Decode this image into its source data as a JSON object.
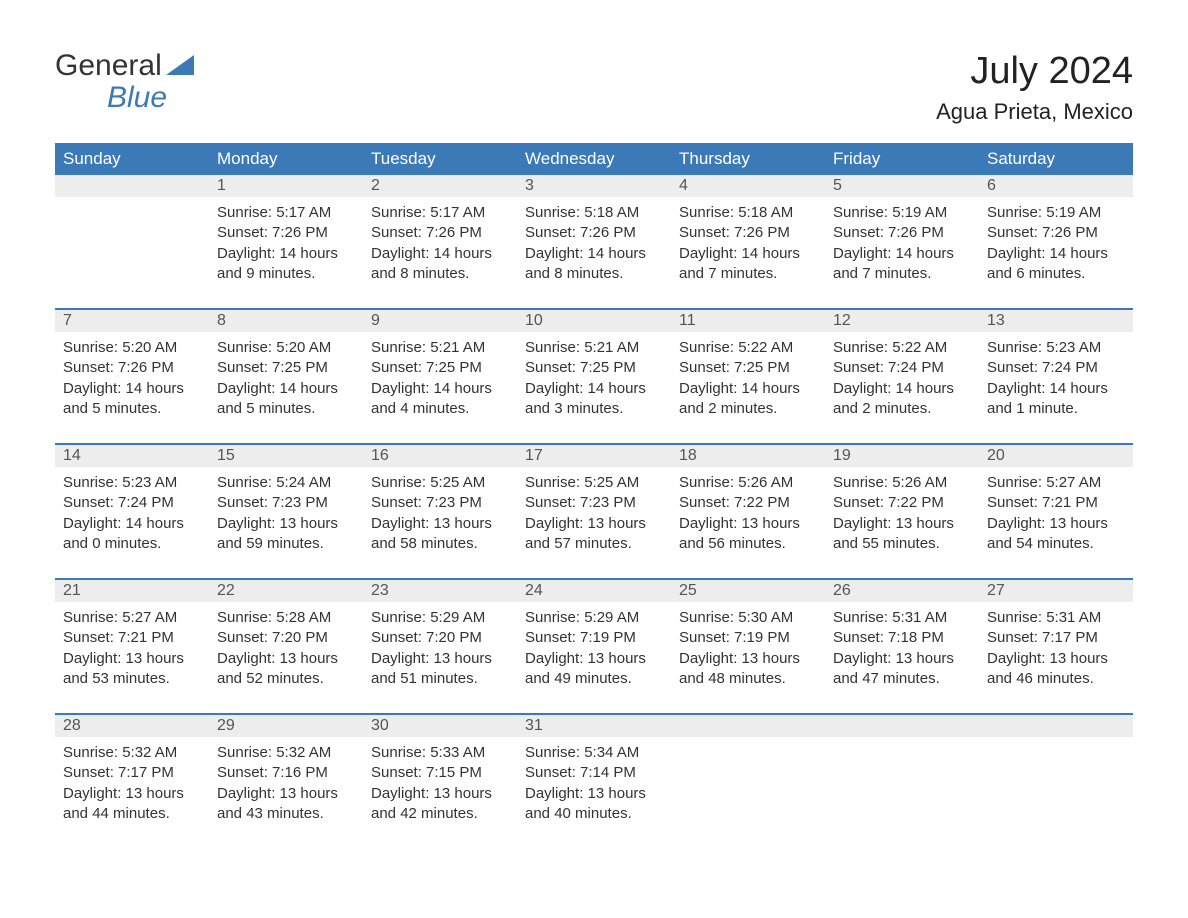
{
  "logo": {
    "word1": "General",
    "word2": "Blue"
  },
  "title": "July 2024",
  "location": "Agua Prieta, Mexico",
  "colors": {
    "header_bg": "#3b79b7",
    "header_text": "#ffffff",
    "daynum_bg": "#ededed",
    "row_border": "#3b79b7",
    "logo_blue": "#3b79b7"
  },
  "weekdays": [
    "Sunday",
    "Monday",
    "Tuesday",
    "Wednesday",
    "Thursday",
    "Friday",
    "Saturday"
  ],
  "weeks": [
    [
      {
        "empty": true
      },
      {
        "day": "1",
        "sunrise": "Sunrise: 5:17 AM",
        "sunset": "Sunset: 7:26 PM",
        "daylight1": "Daylight: 14 hours",
        "daylight2": "and 9 minutes."
      },
      {
        "day": "2",
        "sunrise": "Sunrise: 5:17 AM",
        "sunset": "Sunset: 7:26 PM",
        "daylight1": "Daylight: 14 hours",
        "daylight2": "and 8 minutes."
      },
      {
        "day": "3",
        "sunrise": "Sunrise: 5:18 AM",
        "sunset": "Sunset: 7:26 PM",
        "daylight1": "Daylight: 14 hours",
        "daylight2": "and 8 minutes."
      },
      {
        "day": "4",
        "sunrise": "Sunrise: 5:18 AM",
        "sunset": "Sunset: 7:26 PM",
        "daylight1": "Daylight: 14 hours",
        "daylight2": "and 7 minutes."
      },
      {
        "day": "5",
        "sunrise": "Sunrise: 5:19 AM",
        "sunset": "Sunset: 7:26 PM",
        "daylight1": "Daylight: 14 hours",
        "daylight2": "and 7 minutes."
      },
      {
        "day": "6",
        "sunrise": "Sunrise: 5:19 AM",
        "sunset": "Sunset: 7:26 PM",
        "daylight1": "Daylight: 14 hours",
        "daylight2": "and 6 minutes."
      }
    ],
    [
      {
        "day": "7",
        "sunrise": "Sunrise: 5:20 AM",
        "sunset": "Sunset: 7:26 PM",
        "daylight1": "Daylight: 14 hours",
        "daylight2": "and 5 minutes."
      },
      {
        "day": "8",
        "sunrise": "Sunrise: 5:20 AM",
        "sunset": "Sunset: 7:25 PM",
        "daylight1": "Daylight: 14 hours",
        "daylight2": "and 5 minutes."
      },
      {
        "day": "9",
        "sunrise": "Sunrise: 5:21 AM",
        "sunset": "Sunset: 7:25 PM",
        "daylight1": "Daylight: 14 hours",
        "daylight2": "and 4 minutes."
      },
      {
        "day": "10",
        "sunrise": "Sunrise: 5:21 AM",
        "sunset": "Sunset: 7:25 PM",
        "daylight1": "Daylight: 14 hours",
        "daylight2": "and 3 minutes."
      },
      {
        "day": "11",
        "sunrise": "Sunrise: 5:22 AM",
        "sunset": "Sunset: 7:25 PM",
        "daylight1": "Daylight: 14 hours",
        "daylight2": "and 2 minutes."
      },
      {
        "day": "12",
        "sunrise": "Sunrise: 5:22 AM",
        "sunset": "Sunset: 7:24 PM",
        "daylight1": "Daylight: 14 hours",
        "daylight2": "and 2 minutes."
      },
      {
        "day": "13",
        "sunrise": "Sunrise: 5:23 AM",
        "sunset": "Sunset: 7:24 PM",
        "daylight1": "Daylight: 14 hours",
        "daylight2": "and 1 minute."
      }
    ],
    [
      {
        "day": "14",
        "sunrise": "Sunrise: 5:23 AM",
        "sunset": "Sunset: 7:24 PM",
        "daylight1": "Daylight: 14 hours",
        "daylight2": "and 0 minutes."
      },
      {
        "day": "15",
        "sunrise": "Sunrise: 5:24 AM",
        "sunset": "Sunset: 7:23 PM",
        "daylight1": "Daylight: 13 hours",
        "daylight2": "and 59 minutes."
      },
      {
        "day": "16",
        "sunrise": "Sunrise: 5:25 AM",
        "sunset": "Sunset: 7:23 PM",
        "daylight1": "Daylight: 13 hours",
        "daylight2": "and 58 minutes."
      },
      {
        "day": "17",
        "sunrise": "Sunrise: 5:25 AM",
        "sunset": "Sunset: 7:23 PM",
        "daylight1": "Daylight: 13 hours",
        "daylight2": "and 57 minutes."
      },
      {
        "day": "18",
        "sunrise": "Sunrise: 5:26 AM",
        "sunset": "Sunset: 7:22 PM",
        "daylight1": "Daylight: 13 hours",
        "daylight2": "and 56 minutes."
      },
      {
        "day": "19",
        "sunrise": "Sunrise: 5:26 AM",
        "sunset": "Sunset: 7:22 PM",
        "daylight1": "Daylight: 13 hours",
        "daylight2": "and 55 minutes."
      },
      {
        "day": "20",
        "sunrise": "Sunrise: 5:27 AM",
        "sunset": "Sunset: 7:21 PM",
        "daylight1": "Daylight: 13 hours",
        "daylight2": "and 54 minutes."
      }
    ],
    [
      {
        "day": "21",
        "sunrise": "Sunrise: 5:27 AM",
        "sunset": "Sunset: 7:21 PM",
        "daylight1": "Daylight: 13 hours",
        "daylight2": "and 53 minutes."
      },
      {
        "day": "22",
        "sunrise": "Sunrise: 5:28 AM",
        "sunset": "Sunset: 7:20 PM",
        "daylight1": "Daylight: 13 hours",
        "daylight2": "and 52 minutes."
      },
      {
        "day": "23",
        "sunrise": "Sunrise: 5:29 AM",
        "sunset": "Sunset: 7:20 PM",
        "daylight1": "Daylight: 13 hours",
        "daylight2": "and 51 minutes."
      },
      {
        "day": "24",
        "sunrise": "Sunrise: 5:29 AM",
        "sunset": "Sunset: 7:19 PM",
        "daylight1": "Daylight: 13 hours",
        "daylight2": "and 49 minutes."
      },
      {
        "day": "25",
        "sunrise": "Sunrise: 5:30 AM",
        "sunset": "Sunset: 7:19 PM",
        "daylight1": "Daylight: 13 hours",
        "daylight2": "and 48 minutes."
      },
      {
        "day": "26",
        "sunrise": "Sunrise: 5:31 AM",
        "sunset": "Sunset: 7:18 PM",
        "daylight1": "Daylight: 13 hours",
        "daylight2": "and 47 minutes."
      },
      {
        "day": "27",
        "sunrise": "Sunrise: 5:31 AM",
        "sunset": "Sunset: 7:17 PM",
        "daylight1": "Daylight: 13 hours",
        "daylight2": "and 46 minutes."
      }
    ],
    [
      {
        "day": "28",
        "sunrise": "Sunrise: 5:32 AM",
        "sunset": "Sunset: 7:17 PM",
        "daylight1": "Daylight: 13 hours",
        "daylight2": "and 44 minutes."
      },
      {
        "day": "29",
        "sunrise": "Sunrise: 5:32 AM",
        "sunset": "Sunset: 7:16 PM",
        "daylight1": "Daylight: 13 hours",
        "daylight2": "and 43 minutes."
      },
      {
        "day": "30",
        "sunrise": "Sunrise: 5:33 AM",
        "sunset": "Sunset: 7:15 PM",
        "daylight1": "Daylight: 13 hours",
        "daylight2": "and 42 minutes."
      },
      {
        "day": "31",
        "sunrise": "Sunrise: 5:34 AM",
        "sunset": "Sunset: 7:14 PM",
        "daylight1": "Daylight: 13 hours",
        "daylight2": "and 40 minutes."
      },
      {
        "empty": true
      },
      {
        "empty": true
      },
      {
        "empty": true
      }
    ]
  ]
}
